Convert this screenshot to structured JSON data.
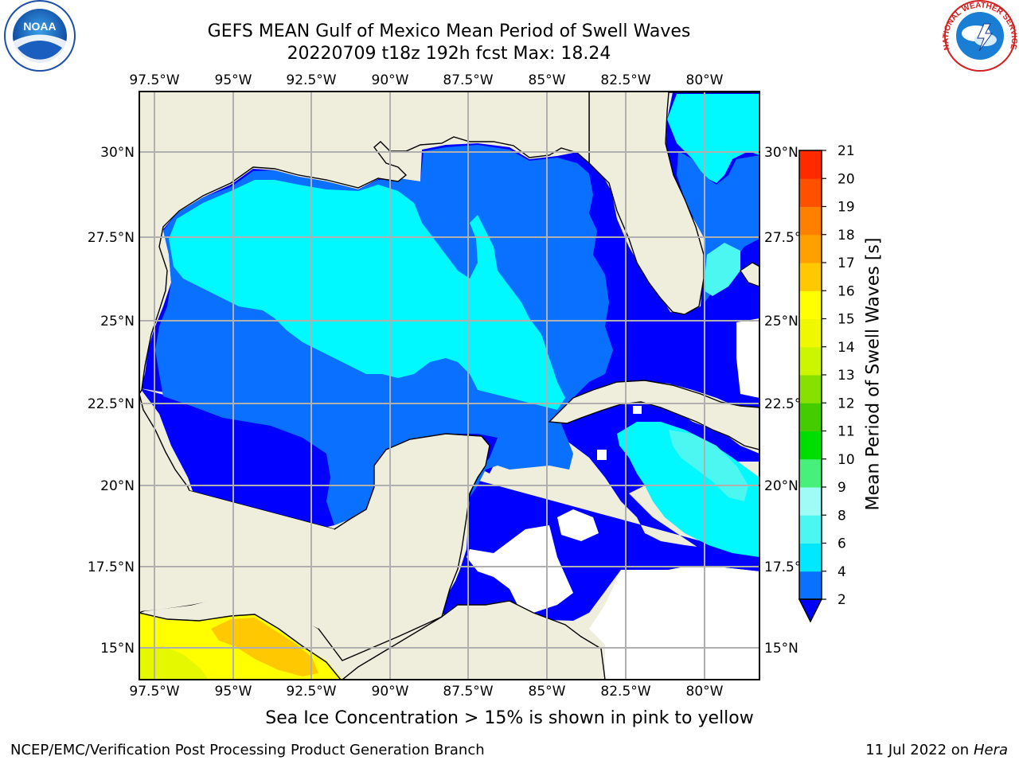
{
  "header": {
    "title_line1": "GEFS MEAN Gulf of Mexico Mean Period of Swell Waves",
    "title_line2": "20220709 t18z 192h fcst   Max: 18.24"
  },
  "map": {
    "lon_labels": [
      "97.5°W",
      "95°W",
      "92.5°W",
      "90°W",
      "87.5°W",
      "85°W",
      "82.5°W",
      "80°W"
    ],
    "lat_labels": [
      "30°N",
      "27.5°N",
      "25°N",
      "22.5°N",
      "20°N",
      "17.5°N",
      "15°N"
    ],
    "land_color": "#efeedc",
    "grid_color": "#b0b0b0"
  },
  "colorbar": {
    "label": "Mean Period of Swell Waves [s]",
    "tick_labels": [
      "2",
      "4",
      "6",
      "8",
      "9",
      "10",
      "11",
      "12",
      "13",
      "14",
      "15",
      "16",
      "17",
      "18",
      "19",
      "20",
      "21"
    ],
    "colors": [
      "#0a70ff",
      "#00e8ff",
      "#4cf7f2",
      "#9ffbf6",
      "#46f07a",
      "#00dd00",
      "#44cc00",
      "#88e000",
      "#ccf500",
      "#f0f800",
      "#ffff00",
      "#ffc800",
      "#ffa000",
      "#ff8000",
      "#ff5000",
      "#ff2a00",
      "#ff0000"
    ],
    "under_color": "#0000ff"
  },
  "caption": "Sea Ice Concentration > 15% is shown in pink to yellow",
  "footer": {
    "left": "NCEP/EMC/Verification Post Processing Product Generation Branch",
    "date": "11 Jul 2022 on ",
    "system": "Hera"
  },
  "logos": {
    "noaa_text": "NOAA",
    "nws_text": "NATIONAL WEATHER SERVICE"
  }
}
